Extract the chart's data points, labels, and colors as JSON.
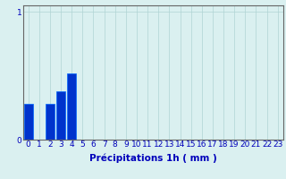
{
  "xlabel": "Précipitations 1h ( mm )",
  "categories": [
    0,
    1,
    2,
    3,
    4,
    5,
    6,
    7,
    8,
    9,
    10,
    11,
    12,
    13,
    14,
    15,
    16,
    17,
    18,
    19,
    20,
    21,
    22,
    23
  ],
  "values": [
    0.28,
    0.0,
    0.28,
    0.38,
    0.52,
    0.0,
    0.0,
    0.0,
    0.0,
    0.0,
    0.0,
    0.0,
    0.0,
    0.0,
    0.0,
    0.0,
    0.0,
    0.0,
    0.0,
    0.0,
    0.0,
    0.0,
    0.0,
    0.0
  ],
  "bar_color": "#0033cc",
  "bar_edge_color": "#0066ff",
  "background_color": "#daf0f0",
  "grid_color": "#b0d4d4",
  "text_color": "#0000bb",
  "axis_color": "#666666",
  "xlim": [
    -0.5,
    23.5
  ],
  "ylim": [
    0,
    1.05
  ],
  "yticks": [
    0,
    1
  ],
  "xticks": [
    0,
    1,
    2,
    3,
    4,
    5,
    6,
    7,
    8,
    9,
    10,
    11,
    12,
    13,
    14,
    15,
    16,
    17,
    18,
    19,
    20,
    21,
    22,
    23
  ],
  "tick_fontsize": 6.5,
  "xlabel_fontsize": 7.5,
  "xlabel_fontweight": "bold"
}
